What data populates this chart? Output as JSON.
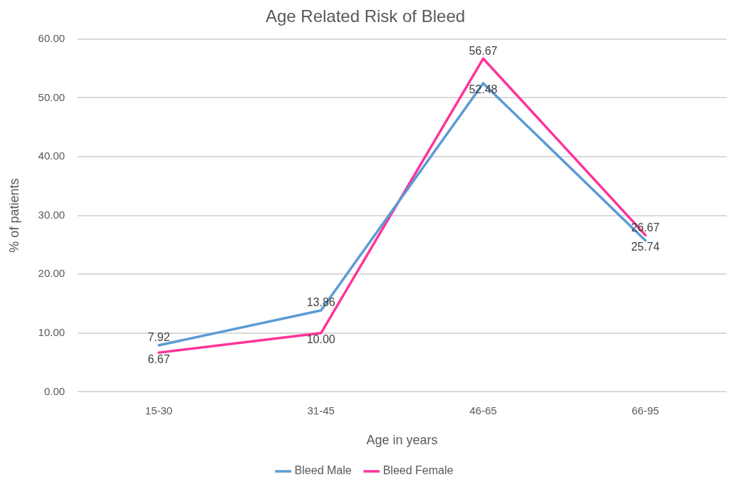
{
  "chart_data": {
    "type": "line",
    "title": "Age Related Risk of Bleed",
    "xlabel": "Age in years",
    "ylabel": "% of patients",
    "categories": [
      "15-30",
      "31-45",
      "46-65",
      "66-95"
    ],
    "series": [
      {
        "name": "Bleed Male",
        "color": "#5b9bd5",
        "values": [
          7.92,
          13.86,
          52.48,
          25.74
        ],
        "value_labels": [
          "7.92",
          "13.86",
          "52.48",
          "25.74"
        ]
      },
      {
        "name": "Bleed Female",
        "color": "#ff3399",
        "values": [
          6.67,
          10.0,
          56.67,
          26.67
        ],
        "value_labels": [
          "6.67",
          "10.00",
          "56.67",
          "26.67"
        ]
      }
    ],
    "ylim": [
      0,
      60
    ],
    "yticks": [
      {
        "value": 0,
        "label": "0.00"
      },
      {
        "value": 10,
        "label": "10.00"
      },
      {
        "value": 20,
        "label": "20.00"
      },
      {
        "value": 30,
        "label": "30.00"
      },
      {
        "value": 40,
        "label": "40.00"
      },
      {
        "value": 50,
        "label": "50.00"
      },
      {
        "value": 60,
        "label": "60.00"
      }
    ],
    "grid": "y",
    "legend": "bottom",
    "marker": "none",
    "line_style": "solid"
  }
}
